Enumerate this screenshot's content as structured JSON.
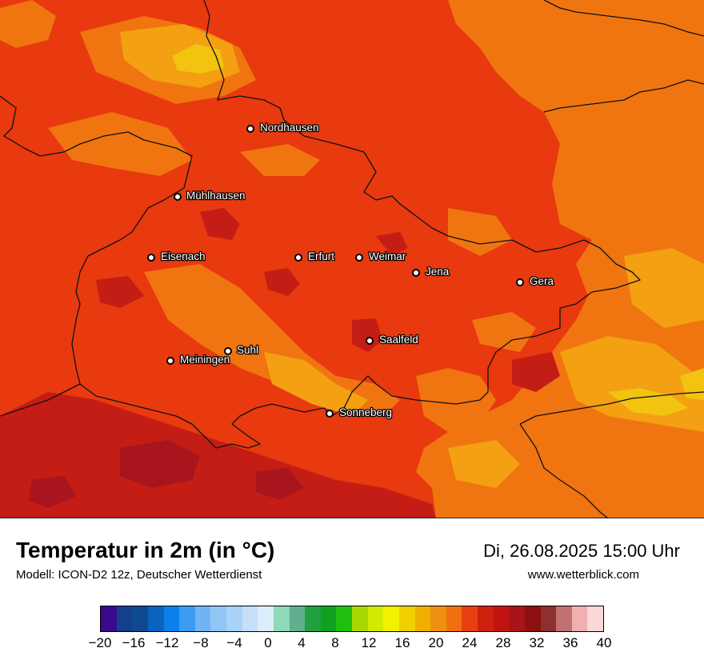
{
  "title": "Temperatur in 2m (in °C)",
  "model": "Modell: ICON-D2 12z, Deutscher Wetterdienst",
  "datetime": "Di, 26.08.2025 15:00 Uhr",
  "website": "www.wetterblick.com",
  "map": {
    "cities": [
      "Nordhausen",
      "Mühlhausen",
      "Eisenach",
      "Erfurt",
      "Weimar",
      "Jena",
      "Gera",
      "Saalfeld",
      "Suhl",
      "Meiningen",
      "Sonneberg"
    ],
    "colors": {
      "background": "#e8390f",
      "warm": "#f07510",
      "warmer_light": "#f3a013",
      "hot": "#c31d15",
      "very_hot": "#a8151c",
      "yellow": "#f2c30f",
      "border": "#111111"
    }
  },
  "legend": {
    "ticks": [
      "−20",
      "−16",
      "−12",
      "−8",
      "−4",
      "0",
      "4",
      "8",
      "12",
      "16",
      "20",
      "24",
      "28",
      "32",
      "36",
      "40"
    ],
    "colors": [
      "#3a0a8c",
      "#143f8c",
      "#0f4a8f",
      "#0a64bf",
      "#0a80ea",
      "#3a9cf0",
      "#70b4f4",
      "#90c6f6",
      "#a8d2f8",
      "#c6e0fa",
      "#dceefc",
      "#8fd8b8",
      "#60b090",
      "#20a040",
      "#10a020",
      "#1fbf10",
      "#a8d800",
      "#d2ea00",
      "#f2f200",
      "#f0d000",
      "#f0b000",
      "#f09010",
      "#f07010",
      "#e84010",
      "#d02010",
      "#c01410",
      "#a81418",
      "#8c1010",
      "#8c3030",
      "#c07070",
      "#f0b0b0",
      "#fbd8d8"
    ]
  }
}
